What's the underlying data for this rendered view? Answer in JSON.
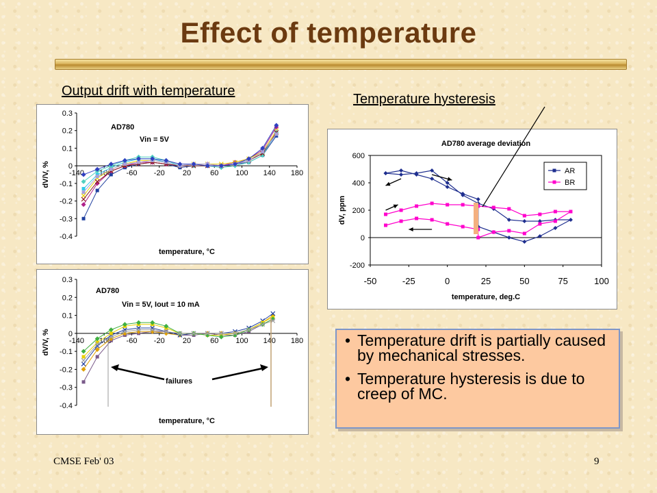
{
  "slide": {
    "title": "Effect of temperature",
    "heading_left": "Output drift with temperature",
    "heading_right": "Temperature hysteresis",
    "footer_left": "CMSE Feb' 03",
    "footer_right": "9",
    "bullets": [
      "Temperature drift is partially caused by mechanical stresses.",
      "Temperature hysteresis is due to creep of MC."
    ]
  },
  "chart_data": [
    {
      "type": "line",
      "annotations": [
        "AD780",
        "Vin = 5V"
      ],
      "title": "",
      "xlabel": "temperature, °C",
      "ylabel": "dV/V, %",
      "xlim": [
        -140,
        180
      ],
      "ylim": [
        -0.4,
        0.3
      ],
      "x_ticks": [
        -140,
        -100,
        -60,
        -20,
        20,
        60,
        100,
        140,
        180
      ],
      "y_ticks": [
        0.3,
        0.2,
        0.1,
        0,
        -0.1,
        -0.2,
        -0.3,
        -0.4
      ],
      "x": [
        -130,
        -110,
        -90,
        -70,
        -50,
        -30,
        -10,
        10,
        30,
        50,
        70,
        90,
        110,
        130,
        150
      ],
      "series": [
        {
          "values": [
            -0.3,
            -0.14,
            -0.05,
            -0.01,
            0.01,
            0.02,
            0.01,
            -0.01,
            0.0,
            0.0,
            0.0,
            0.01,
            0.02,
            0.06,
            0.17
          ],
          "color": "#1f3f9f"
        },
        {
          "values": [
            -0.22,
            -0.1,
            -0.03,
            0.0,
            0.02,
            0.02,
            0.01,
            0.0,
            0.01,
            0.01,
            0.0,
            0.02,
            0.04,
            0.09,
            0.22
          ],
          "color": "#b0208a"
        },
        {
          "values": [
            -0.17,
            -0.07,
            -0.02,
            0.01,
            0.03,
            0.03,
            0.02,
            0.0,
            0.01,
            0.01,
            0.01,
            0.02,
            0.04,
            0.08,
            0.2
          ],
          "color": "#e8d000"
        },
        {
          "values": [
            -0.13,
            -0.05,
            -0.01,
            0.02,
            0.04,
            0.04,
            0.02,
            0.0,
            0.0,
            0.0,
            0.0,
            0.01,
            0.03,
            0.07,
            0.18
          ],
          "color": "#30c8e8"
        },
        {
          "values": [
            -0.09,
            -0.03,
            0.0,
            0.03,
            0.05,
            0.05,
            0.03,
            0.0,
            0.0,
            0.0,
            -0.01,
            0.0,
            0.02,
            0.06,
            0.19
          ],
          "color": "#50d0c0"
        },
        {
          "values": [
            -0.19,
            -0.09,
            -0.03,
            0.0,
            0.01,
            0.02,
            0.01,
            0.0,
            0.0,
            0.0,
            0.0,
            0.01,
            0.03,
            0.07,
            0.19
          ],
          "color": "#8b1a1a"
        },
        {
          "values": [
            -0.15,
            -0.06,
            -0.02,
            0.01,
            0.02,
            0.03,
            0.02,
            0.0,
            0.01,
            0.01,
            0.0,
            0.01,
            0.03,
            0.08,
            0.18
          ],
          "color": "#a8a0d8"
        },
        {
          "values": [
            -0.05,
            -0.02,
            0.01,
            0.03,
            0.04,
            0.04,
            0.03,
            0.01,
            0.01,
            0.0,
            0.0,
            0.01,
            0.04,
            0.1,
            0.23
          ],
          "color": "#3040c0"
        }
      ]
    },
    {
      "type": "line",
      "annotations": [
        "AD780",
        "Vin = 5V, Iout = 10 mA",
        "failures"
      ],
      "title": "",
      "xlabel": "temperature, °C",
      "ylabel": "dV/V, %",
      "xlim": [
        -140,
        180
      ],
      "ylim": [
        -0.4,
        0.3
      ],
      "x_ticks": [
        -140,
        -100,
        -60,
        -20,
        20,
        60,
        100,
        140,
        180
      ],
      "y_ticks": [
        0.3,
        0.2,
        0.1,
        0,
        -0.1,
        -0.2,
        -0.3,
        -0.4
      ],
      "x": [
        -130,
        -110,
        -90,
        -70,
        -50,
        -30,
        -10,
        10,
        30,
        50,
        70,
        90,
        110,
        130,
        145
      ],
      "series": [
        {
          "values": [
            -0.27,
            -0.13,
            -0.04,
            -0.01,
            0.0,
            0.01,
            0.01,
            -0.01,
            -0.01,
            0.0,
            -0.01,
            -0.01,
            0.01,
            0.05,
            0.08
          ],
          "color": "#7a5a8a"
        },
        {
          "values": [
            -0.2,
            -0.09,
            -0.03,
            0.0,
            0.01,
            0.01,
            0.0,
            -0.01,
            0.0,
            0.0,
            0.0,
            0.0,
            0.02,
            0.06,
            0.1
          ],
          "color": "#e0a000"
        },
        {
          "values": [
            -0.17,
            -0.07,
            -0.01,
            0.02,
            0.03,
            0.03,
            0.01,
            -0.01,
            0.0,
            0.0,
            0.0,
            0.01,
            0.03,
            0.07,
            0.11
          ],
          "color": "#1f3f9f"
        },
        {
          "values": [
            -0.13,
            -0.05,
            0.0,
            0.04,
            0.05,
            0.05,
            0.03,
            0.0,
            0.0,
            -0.01,
            -0.01,
            0.0,
            0.02,
            0.06,
            0.09
          ],
          "color": "#e8d000"
        },
        {
          "values": [
            -0.1,
            -0.03,
            0.02,
            0.05,
            0.06,
            0.06,
            0.04,
            0.0,
            0.0,
            -0.01,
            -0.02,
            -0.01,
            0.02,
            0.05,
            0.08
          ],
          "color": "#40b040"
        },
        {
          "values": [
            -0.15,
            -0.06,
            -0.02,
            0.01,
            0.02,
            0.02,
            0.01,
            0.0,
            0.0,
            0.0,
            0.0,
            0.0,
            0.02,
            0.05,
            0.07
          ],
          "color": "#a0a0a0"
        }
      ]
    },
    {
      "type": "line",
      "title": "AD780 average deviation",
      "xlabel": "temperature, deg.C",
      "ylabel": "dV, ppm",
      "xlim": [
        -50,
        100
      ],
      "ylim": [
        -200,
        600
      ],
      "x_ticks": [
        -50,
        -25,
        0,
        25,
        50,
        75,
        100
      ],
      "y_ticks": [
        600,
        400,
        200,
        0,
        -200
      ],
      "legend": "top-right",
      "series": [
        {
          "name": "AR",
          "color": "#1f2f8f",
          "points": [
            [
              -40,
              470
            ],
            [
              -30,
              490
            ],
            [
              -20,
              460
            ],
            [
              -10,
              430
            ],
            [
              0,
              370
            ],
            [
              10,
              320
            ],
            [
              20,
              280
            ],
            [
              20,
              80
            ],
            [
              30,
              40
            ],
            [
              40,
              0
            ],
            [
              50,
              -30
            ],
            [
              60,
              10
            ],
            [
              70,
              70
            ],
            [
              80,
              130
            ],
            [
              70,
              130
            ],
            [
              60,
              120
            ],
            [
              50,
              120
            ],
            [
              40,
              130
            ],
            [
              30,
              210
            ],
            [
              20,
              250
            ],
            [
              10,
              310
            ],
            [
              0,
              400
            ],
            [
              -10,
              490
            ],
            [
              -20,
              470
            ],
            [
              -30,
              460
            ],
            [
              -40,
              470
            ]
          ]
        },
        {
          "name": "BR",
          "color": "#ff00cc",
          "points": [
            [
              -40,
              90
            ],
            [
              -30,
              120
            ],
            [
              -20,
              140
            ],
            [
              -10,
              130
            ],
            [
              0,
              100
            ],
            [
              10,
              80
            ],
            [
              20,
              60
            ],
            [
              20,
              0
            ],
            [
              30,
              40
            ],
            [
              40,
              50
            ],
            [
              50,
              30
            ],
            [
              60,
              100
            ],
            [
              70,
              120
            ],
            [
              80,
              190
            ],
            [
              70,
              190
            ],
            [
              60,
              170
            ],
            [
              50,
              160
            ],
            [
              40,
              210
            ],
            [
              30,
              220
            ],
            [
              20,
              230
            ],
            [
              10,
              240
            ],
            [
              0,
              240
            ],
            [
              -10,
              250
            ],
            [
              -20,
              230
            ],
            [
              -30,
              200
            ],
            [
              -40,
              170
            ]
          ]
        }
      ]
    }
  ]
}
